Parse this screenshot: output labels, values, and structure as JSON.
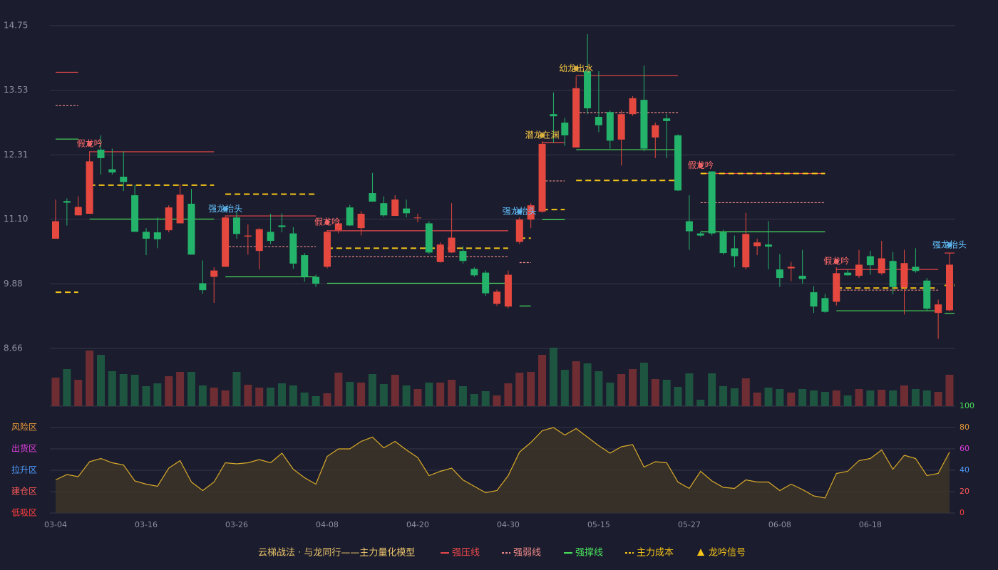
{
  "chart_data": {
    "type": "candlestick",
    "categories": [
      "03-04",
      null,
      null,
      null,
      null,
      null,
      null,
      null,
      "03-16",
      null,
      null,
      null,
      null,
      null,
      null,
      null,
      "03-26",
      null,
      null,
      null,
      null,
      null,
      null,
      null,
      "04-08",
      null,
      null,
      null,
      null,
      null,
      null,
      null,
      "04-20",
      null,
      null,
      null,
      null,
      null,
      null,
      null,
      "04-30",
      null,
      null,
      null,
      null,
      null,
      null,
      null,
      "05-15",
      null,
      null,
      null,
      null,
      null,
      null,
      null,
      "05-27",
      null,
      null,
      null,
      null,
      null,
      null,
      null,
      "06-08",
      null,
      null,
      null,
      null,
      null,
      null,
      null,
      "06-18",
      null,
      null,
      null,
      null,
      null,
      null,
      null
    ],
    "open": [
      10.73,
      11.44,
      11.17,
      11.2,
      12.41,
      12.04,
      11.9,
      11.55,
      10.86,
      10.85,
      10.89,
      11.02,
      11.39,
      9.89,
      10.01,
      10.2,
      11.13,
      10.77,
      10.5,
      10.86,
      10.98,
      10.83,
      10.42,
      10.01,
      10.2,
      10.89,
      11.32,
      10.93,
      11.59,
      11.4,
      11.16,
      11.3,
      11.12,
      11.02,
      10.29,
      10.47,
      10.5,
      10.16,
      10.09,
      9.5,
      9.45,
      10.67,
      11.09,
      11.24,
      13.08,
      12.92,
      12.45,
      13.89,
      13.03,
      13.12,
      12.6,
      13.08,
      13.35,
      12.64,
      13.0,
      12.68,
      11.06,
      10.83,
      12.0,
      10.85,
      10.55,
      10.19,
      10.59,
      10.62,
      10.15,
      10.17,
      10.03,
      9.72,
      9.61,
      9.54,
      10.09,
      10.03,
      10.4,
      10.08,
      10.31,
      9.81,
      10.2,
      9.94,
      9.33,
      9.38
    ],
    "high": [
      11.47,
      11.49,
      11.53,
      12.38,
      12.68,
      12.43,
      12.38,
      11.74,
      10.93,
      11.13,
      11.36,
      11.76,
      11.67,
      10.32,
      10.19,
      11.17,
      11.24,
      11.0,
      10.93,
      11.2,
      11.21,
      10.95,
      10.46,
      10.05,
      10.89,
      11.09,
      11.37,
      11.25,
      11.97,
      11.53,
      11.55,
      11.47,
      11.2,
      11.06,
      10.66,
      11.4,
      10.59,
      10.19,
      10.13,
      9.77,
      10.13,
      11.13,
      11.4,
      12.57,
      13.49,
      13.01,
      13.79,
      14.59,
      13.89,
      13.15,
      13.15,
      13.42,
      14.0,
      12.92,
      13.08,
      12.7,
      11.55,
      10.86,
      12.0,
      10.9,
      10.79,
      11.22,
      10.73,
      11.06,
      10.44,
      10.29,
      10.52,
      9.83,
      9.69,
      10.19,
      10.15,
      10.52,
      10.5,
      10.69,
      10.48,
      10.52,
      10.55,
      9.99,
      9.58,
      10.46
    ],
    "low": [
      10.73,
      10.98,
      11.17,
      11.2,
      11.94,
      11.94,
      11.63,
      10.86,
      10.42,
      10.55,
      10.85,
      11.02,
      10.43,
      9.69,
      9.52,
      10.2,
      10.73,
      10.43,
      10.15,
      10.63,
      10.85,
      10.16,
      9.92,
      9.82,
      10.17,
      10.83,
      10.97,
      10.79,
      11.43,
      11.14,
      11.16,
      11.13,
      11.04,
      10.44,
      10.28,
      10.46,
      10.26,
      10.01,
      9.65,
      9.46,
      9.42,
      10.63,
      10.93,
      11.22,
      12.54,
      12.48,
      12.45,
      13.08,
      12.74,
      12.43,
      12.11,
      13.05,
      12.38,
      12.25,
      12.25,
      11.63,
      10.52,
      10.77,
      10.79,
      10.43,
      10.19,
      10.15,
      10.42,
      10.15,
      9.82,
      9.93,
      9.88,
      9.33,
      9.33,
      9.47,
      10.03,
      9.99,
      10.05,
      10.05,
      9.68,
      9.3,
      10.09,
      9.38,
      8.84,
      9.36
    ],
    "close": [
      11.06,
      11.41,
      11.33,
      12.19,
      12.25,
      11.98,
      11.8,
      10.86,
      10.73,
      10.72,
      11.32,
      11.56,
      10.43,
      9.76,
      10.13,
      11.13,
      10.82,
      10.79,
      10.91,
      10.69,
      10.95,
      10.26,
      10.01,
      9.88,
      10.86,
      11.02,
      10.98,
      11.2,
      11.43,
      11.17,
      11.47,
      11.21,
      11.13,
      10.47,
      10.62,
      10.75,
      10.31,
      10.04,
      9.7,
      9.73,
      10.05,
      11.09,
      11.36,
      12.52,
      13.04,
      12.68,
      13.57,
      13.19,
      12.87,
      12.58,
      13.08,
      13.38,
      12.43,
      12.87,
      12.95,
      11.64,
      10.87,
      10.79,
      10.83,
      10.46,
      10.4,
      10.82,
      10.66,
      10.58,
      9.99,
      10.2,
      9.97,
      9.45,
      9.35,
      10.08,
      10.04,
      10.24,
      10.23,
      10.36,
      9.82,
      10.27,
      10.12,
      9.41,
      9.49,
      10.24
    ],
    "up_color": "#e5483f",
    "down_color": "#23b36a",
    "ylim": [
      8.66,
      14.75
    ],
    "yticks": [
      14.75,
      13.53,
      12.31,
      {
        "value": 11.1,
        "label": "11.10"
      },
      9.88,
      8.66
    ],
    "grid": true,
    "volume": [
      40,
      52,
      37,
      78,
      72,
      49,
      45,
      44,
      28,
      32,
      42,
      48,
      48,
      29,
      26,
      22,
      48,
      30,
      26,
      26,
      32,
      29,
      19,
      14,
      18,
      47,
      34,
      33,
      45,
      31,
      44,
      29,
      24,
      33,
      33,
      37,
      28,
      17,
      21,
      15,
      32,
      47,
      48,
      72,
      82,
      51,
      63,
      60,
      49,
      33,
      45,
      52,
      61,
      38,
      37,
      27,
      46,
      9,
      46,
      28,
      25,
      39,
      19,
      26,
      24,
      19,
      24,
      22,
      20,
      22,
      15,
      24,
      22,
      23,
      22,
      29,
      24,
      22,
      20,
      44
    ],
    "volume_up_color": "#6e2d33",
    "volume_down_color": "#1d5540",
    "levels": [
      {
        "item": 0,
        "from": 0,
        "to": 2,
        "value": 13.87
      },
      {
        "item": 1,
        "from": 0,
        "to": 2,
        "value": 13.24
      },
      {
        "item": 2,
        "from": 0,
        "to": 2,
        "value": 12.61
      },
      {
        "item": 3,
        "from": 0,
        "to": 2,
        "value": 9.72
      },
      {
        "item": 0,
        "from": 3,
        "to": 14,
        "value": 12.37
      },
      {
        "item": 2,
        "from": 3,
        "to": 14,
        "value": 11.1
      },
      {
        "item": 3,
        "from": 3,
        "to": 14,
        "value": 11.74
      },
      {
        "item": 0,
        "from": 15,
        "to": 23,
        "value": 11.16
      },
      {
        "item": 1,
        "from": 15,
        "to": 23,
        "value": 10.58
      },
      {
        "item": 2,
        "from": 15,
        "to": 23,
        "value": 10.01
      },
      {
        "item": 3,
        "from": 15,
        "to": 23,
        "value": 11.57
      },
      {
        "item": 0,
        "from": 24,
        "to": 40,
        "value": 10.88
      },
      {
        "item": 1,
        "from": 24,
        "to": 40,
        "value": 10.39
      },
      {
        "item": 2,
        "from": 24,
        "to": 40,
        "value": 9.89
      },
      {
        "item": 3,
        "from": 24,
        "to": 40,
        "value": 10.55
      },
      {
        "item": 1,
        "from": 41,
        "to": 42,
        "value": 10.28
      },
      {
        "item": 2,
        "from": 41,
        "to": 42,
        "value": 9.46
      },
      {
        "item": 3,
        "from": 41,
        "to": 42,
        "value": 10.74
      },
      {
        "item": 0,
        "from": 43,
        "to": 45,
        "value": 12.54
      },
      {
        "item": 1,
        "from": 43,
        "to": 45,
        "value": 11.82
      },
      {
        "item": 2,
        "from": 43,
        "to": 45,
        "value": 11.09
      },
      {
        "item": 3,
        "from": 43,
        "to": 45,
        "value": 11.28
      },
      {
        "item": 0,
        "from": 46,
        "to": 55,
        "value": 13.81
      },
      {
        "item": 1,
        "from": 46,
        "to": 55,
        "value": 13.11
      },
      {
        "item": 2,
        "from": 46,
        "to": 55,
        "value": 12.41
      },
      {
        "item": 3,
        "from": 46,
        "to": 55,
        "value": 11.83
      },
      {
        "item": 0,
        "from": 57,
        "to": 68,
        "value": 11.96
      },
      {
        "item": 1,
        "from": 57,
        "to": 68,
        "value": 11.41
      },
      {
        "item": 2,
        "from": 57,
        "to": 68,
        "value": 10.86
      },
      {
        "item": 3,
        "from": 57,
        "to": 68,
        "value": 11.96
      },
      {
        "item": 0,
        "from": 69,
        "to": 78,
        "value": 10.15
      },
      {
        "item": 1,
        "from": 69,
        "to": 78,
        "value": 9.76
      },
      {
        "item": 2,
        "from": 69,
        "to": 78,
        "value": 9.37
      },
      {
        "item": 3,
        "from": 69,
        "to": 78,
        "value": 9.8
      },
      {
        "item": 0,
        "from": 79,
        "to": 79,
        "value": 10.46
      },
      {
        "item": 2,
        "from": 79,
        "to": 79,
        "value": 9.32
      },
      {
        "item": 3,
        "from": 79,
        "to": 79,
        "value": 9.85
      }
    ],
    "signals": [
      {
        "index": 3,
        "text": "假龙吟",
        "value": 12.52,
        "color": "#ff6b6b"
      },
      {
        "index": 15,
        "text": "强龙抬头",
        "value": 11.29,
        "color": "#63c3ff"
      },
      {
        "index": 24,
        "text": "假龙吟",
        "value": 11.04,
        "color": "#ff6b6b"
      },
      {
        "index": 41,
        "text": "强龙抬头",
        "value": 11.24,
        "color": "#63c3ff"
      },
      {
        "index": 43,
        "text": "潜龙在渊",
        "value": 12.68,
        "color": "#f5c542"
      },
      {
        "index": 46,
        "text": "幼龙出水",
        "value": 13.94,
        "color": "#f5c542"
      },
      {
        "index": 57,
        "text": "假龙吟",
        "value": 12.11,
        "color": "#ff6b6b"
      },
      {
        "index": 69,
        "text": "假龙吟",
        "value": 10.3,
        "color": "#ff6b6b"
      },
      {
        "index": 79,
        "text": "强龙抬头",
        "value": 10.61,
        "color": "#63c3ff"
      }
    ],
    "indicator": {
      "values": [
        31,
        36,
        34,
        48,
        51,
        47,
        45,
        30,
        27,
        25,
        42,
        49,
        29,
        21,
        29,
        47,
        46,
        47,
        50,
        47,
        56,
        41,
        33,
        27,
        53,
        60,
        60,
        67,
        71,
        61,
        67,
        59,
        52,
        35,
        39,
        42,
        31,
        25,
        19,
        21,
        35,
        57,
        66,
        77,
        80,
        73,
        79,
        71,
        63,
        56,
        62,
        64,
        43,
        48,
        47,
        29,
        23,
        39,
        30,
        24,
        23,
        31,
        29,
        29,
        21,
        27,
        22,
        16,
        14,
        37,
        39,
        49,
        51,
        59,
        41,
        54,
        51,
        35,
        37,
        57
      ],
      "color": "#d9aa2a",
      "fill": "#3a3328",
      "y2lim": [
        0,
        100
      ],
      "y2ticks": [
        100,
        80,
        60,
        40,
        20,
        0
      ],
      "y2tick_colors": [
        "#49e35c",
        "#e89b3a",
        "#e040e0",
        "#4d9dff",
        "#ff5a5a",
        "#ff4040"
      ],
      "zones": [
        {
          "label": "风险区",
          "value": 80,
          "color": "#e89b3a"
        },
        {
          "label": "出货区",
          "value": 60,
          "color": "#e040e0"
        },
        {
          "label": "拉升区",
          "value": 40,
          "color": "#4d9dff"
        },
        {
          "label": "建仓区",
          "value": 20,
          "color": "#ff5a5a"
        },
        {
          "label": "低吸区",
          "value": 0,
          "color": "#ff4040"
        }
      ]
    },
    "legend": {
      "title": "云梯战法 · 与龙同行——主力量化模型",
      "title_color": "#e8c26a",
      "items": [
        {
          "name": "强压线",
          "color": "#e8474a",
          "style": "solid"
        },
        {
          "name": "强弱线",
          "color": "#f08a8a",
          "style": "dashed"
        },
        {
          "name": "强撑线",
          "color": "#49e35c",
          "style": "solid"
        },
        {
          "name": "主力成本",
          "color": "#f5c518",
          "style": "dashed-thick"
        },
        {
          "name": "龙吟信号",
          "color": "#f5c518",
          "style": "triangle"
        }
      ]
    }
  }
}
